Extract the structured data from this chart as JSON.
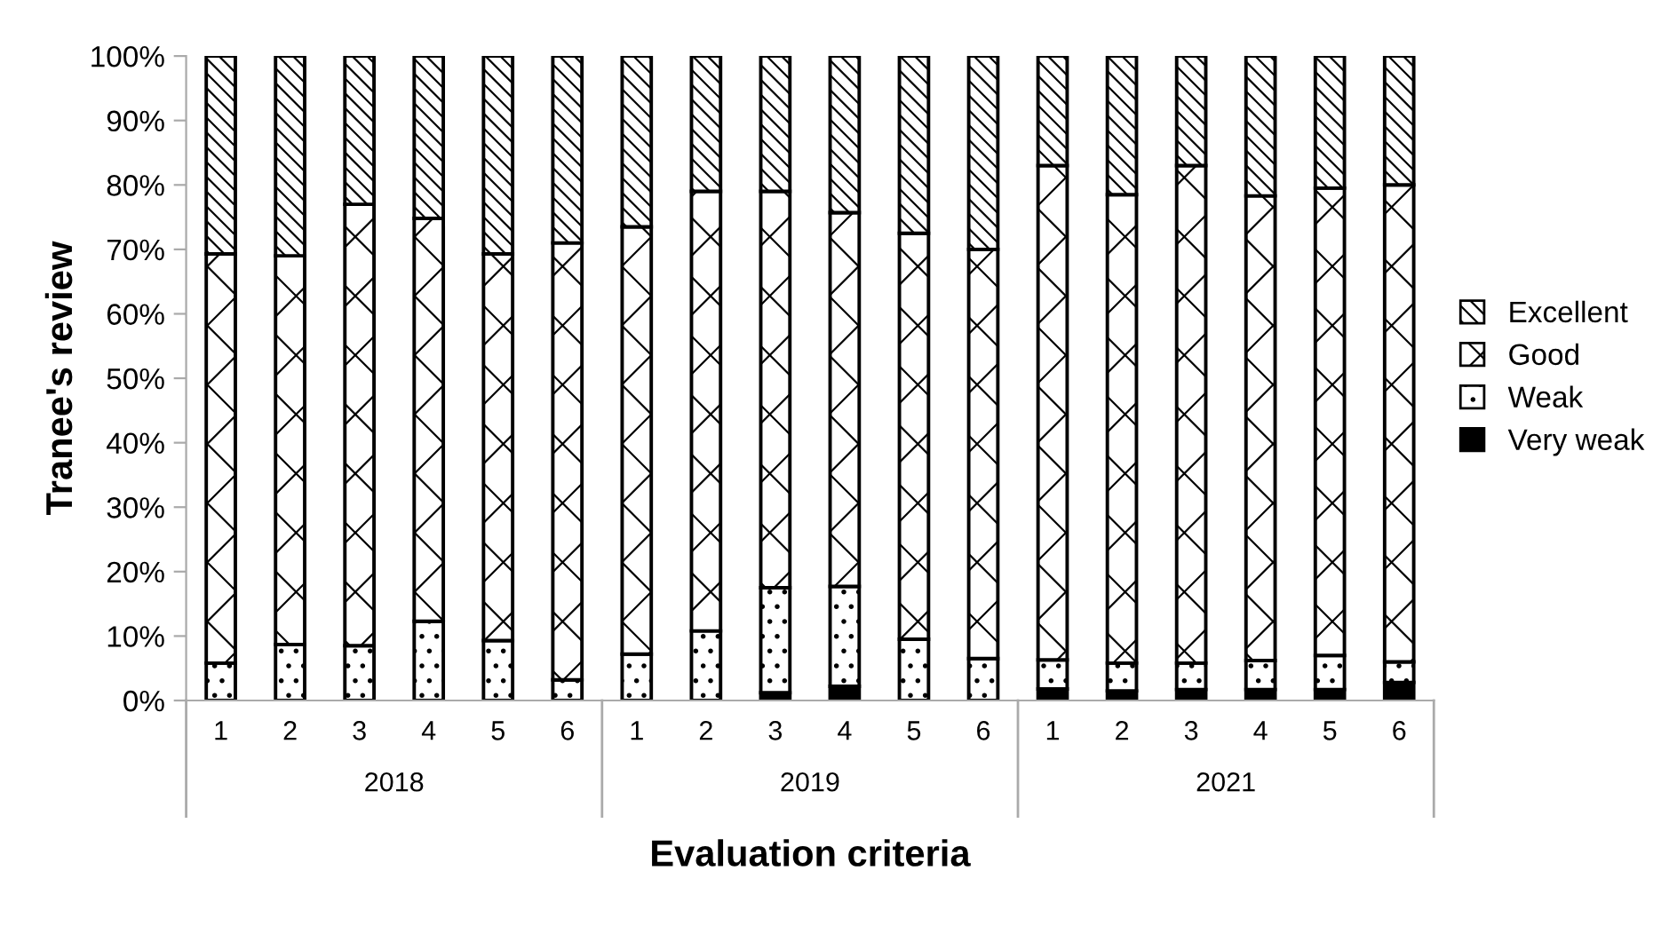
{
  "chart_data": {
    "type": "bar",
    "stacked": true,
    "ylabel": "Tranee's review",
    "xlabel": "Evaluation criteria",
    "categories": [
      "1",
      "2",
      "3",
      "4",
      "5",
      "6",
      "1",
      "2",
      "3",
      "4",
      "5",
      "6",
      "1",
      "2",
      "3",
      "4",
      "5",
      "6"
    ],
    "annotations": [
      "2018",
      "2019",
      "2021"
    ],
    "series": [
      {
        "name": "Very weak",
        "color": "#000000",
        "values": [
          0,
          0,
          0,
          0,
          0,
          0,
          null,
          null,
          1.2,
          2.2,
          null,
          0,
          1.8,
          1.5,
          1.7,
          1.7,
          1.7,
          2.8
        ]
      },
      {
        "name": "Weak",
        "color": "#000000",
        "values": [
          5.8,
          8.7,
          8.5,
          12.3,
          9.3,
          3.2,
          7.2,
          10.8,
          16.3,
          15.5,
          9.5,
          6.5,
          4.5,
          4.3,
          4.1,
          4.5,
          5.3,
          3.2
        ]
      },
      {
        "name": "Good",
        "color": "#000000",
        "values": [
          63.5,
          60.3,
          68.5,
          62.5,
          60.0,
          67.8,
          66.3,
          68.2,
          61.5,
          58.0,
          63.0,
          63.5,
          76.7,
          72.7,
          77.2,
          72.1,
          72.5,
          74.0
        ]
      },
      {
        "name": "Excellent",
        "color": "#000000",
        "values": [
          30.7,
          31.0,
          23.0,
          25.2,
          30.7,
          29.0,
          26.5,
          21.0,
          21.0,
          24.3,
          27.5,
          30.0,
          17.0,
          21.5,
          17.0,
          21.7,
          20.5,
          20.0
        ]
      }
    ],
    "ylim": [
      0,
      100
    ],
    "yticks": [
      {
        "value": 0,
        "label": "0%"
      },
      {
        "value": 10,
        "label": "10%"
      },
      {
        "value": 20,
        "label": "20%"
      },
      {
        "value": 30,
        "label": "30%"
      },
      {
        "value": 40,
        "label": "40%"
      },
      {
        "value": 50,
        "label": "50%"
      },
      {
        "value": 60,
        "label": "60%"
      },
      {
        "value": 70,
        "label": "70%"
      },
      {
        "value": 80,
        "label": "80%"
      },
      {
        "value": 90,
        "label": "90%"
      },
      {
        "value": 100,
        "label": "100%"
      }
    ],
    "grid": false,
    "legend": "right"
  }
}
